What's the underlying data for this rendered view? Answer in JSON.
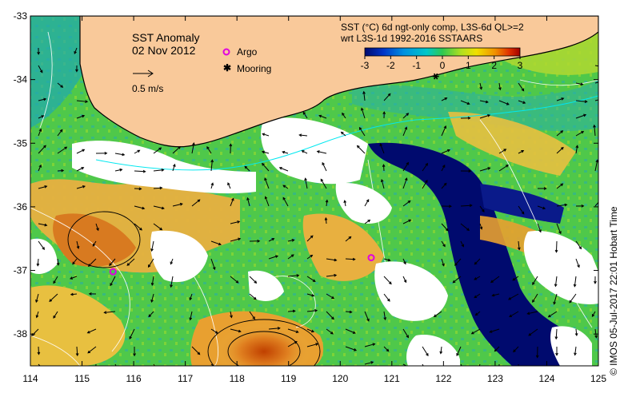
{
  "map": {
    "title": "SST Anomaly",
    "date": "02 Nov 2012",
    "legend": {
      "argo_label": "Argo",
      "mooring_label": "Mooring",
      "vector_scale_label": "0.5 m/s"
    },
    "colorbar": {
      "title_line1": "SST (°C) 6d ngt-only comp, L3S-6d QL>=2",
      "title_line2": "wrt L3S-1d 1992-2016 SSTAARS",
      "ticks": [
        "-3",
        "-2",
        "-1",
        "0",
        "1",
        "2",
        "3"
      ],
      "range": [
        -3,
        3
      ],
      "colors": [
        "#000a6e",
        "#0034c8",
        "#0090e0",
        "#00c8c8",
        "#30c850",
        "#b0e020",
        "#f0e000",
        "#f09000",
        "#e03000",
        "#a00000"
      ]
    },
    "axes": {
      "x_ticks": [
        "114",
        "115",
        "116",
        "117",
        "118",
        "119",
        "120",
        "121",
        "122",
        "123",
        "124",
        "125"
      ],
      "y_ticks": [
        "-33",
        "-34",
        "-35",
        "-36",
        "-37",
        "-38"
      ],
      "lon_range": [
        114,
        125
      ],
      "lat_range": [
        -38.5,
        -33
      ]
    },
    "argo_floats": [
      {
        "lon": 115.6,
        "lat": -37.02
      },
      {
        "lon": 120.6,
        "lat": -36.8
      }
    ],
    "mooring": {
      "lon": 121.85,
      "lat": -33.95
    },
    "credit": "© IMOS 05-Jul-2017 22:01 Hobart Time",
    "colors": {
      "land": "#f9c99a",
      "ocean_green": "#4fc84a",
      "cold": "#000a6e",
      "warm": "#e8a030"
    }
  }
}
